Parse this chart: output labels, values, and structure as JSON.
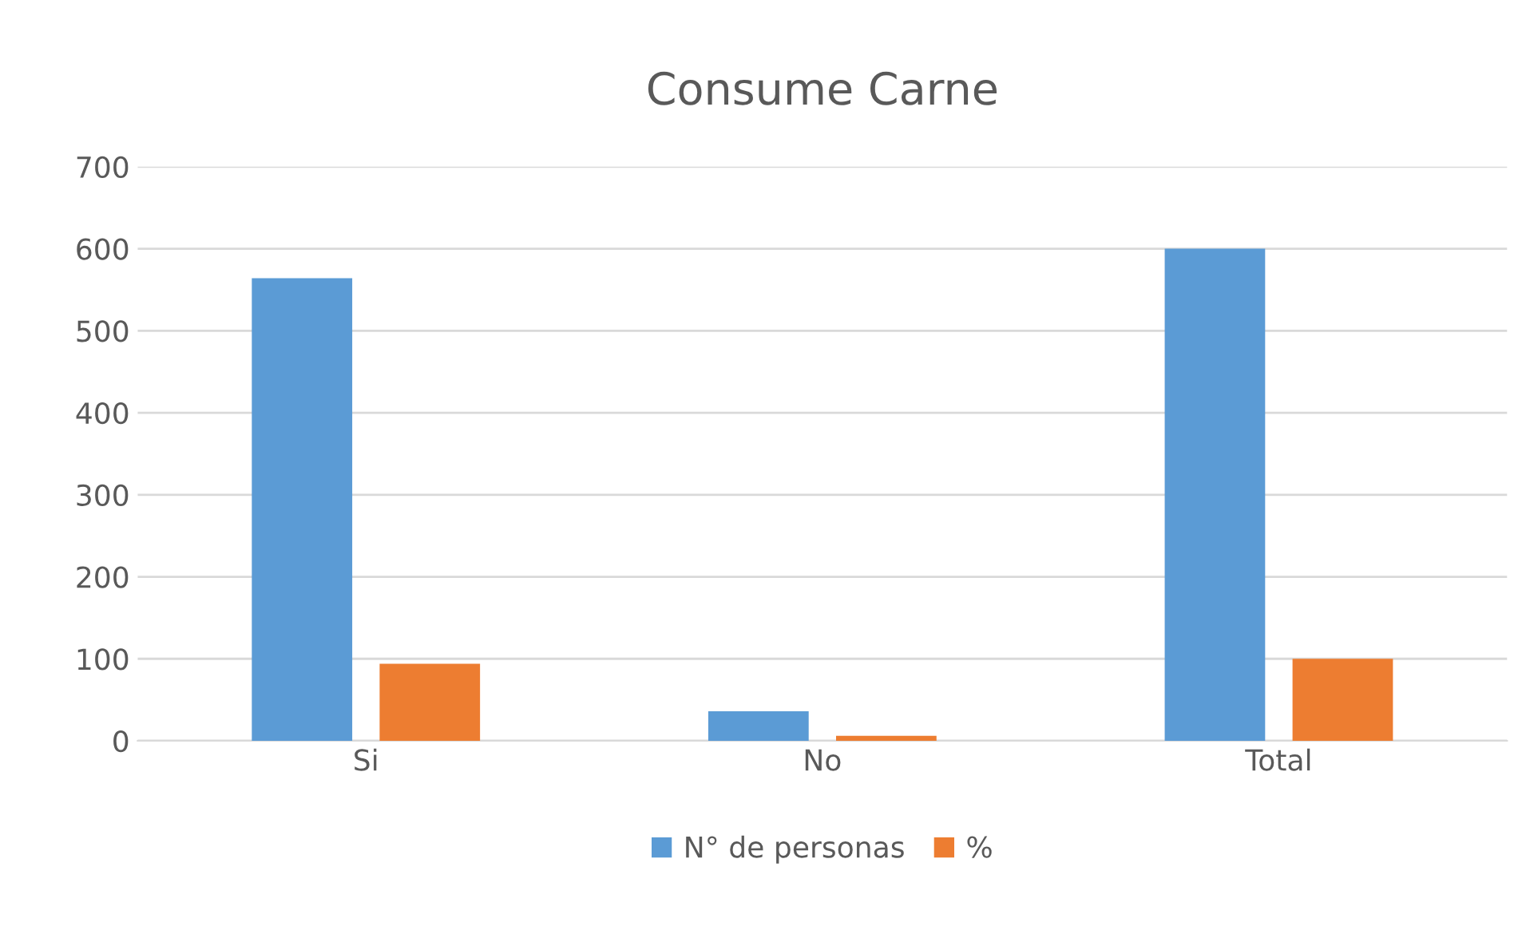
{
  "chart_data": {
    "type": "bar",
    "title": "Consume Carne",
    "categories": [
      "Si",
      "No",
      "Total"
    ],
    "series": [
      {
        "name": "N° de personas",
        "color": "#5b9bd5",
        "values": [
          564,
          36,
          600
        ]
      },
      {
        "name": "%",
        "color": "#ed7d31",
        "values": [
          94,
          6,
          100
        ]
      }
    ],
    "ylim": [
      0,
      700
    ],
    "yticks": [
      0,
      100,
      200,
      300,
      400,
      500,
      600,
      700
    ],
    "grid": "y",
    "legend": "bottom"
  }
}
